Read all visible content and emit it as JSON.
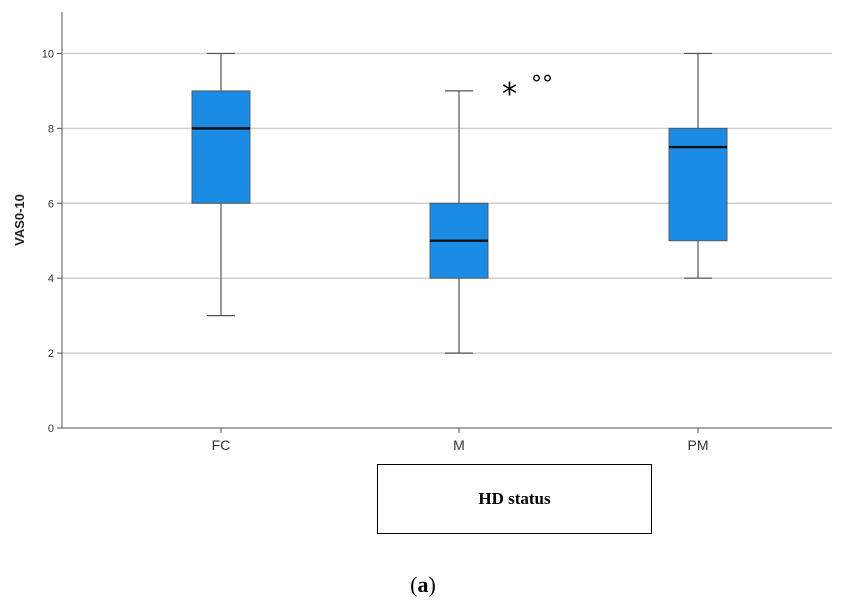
{
  "chart_data": {
    "type": "boxplot",
    "ylabel": "VAS0-10",
    "xlabel": "HD status",
    "ylim": [
      0,
      11
    ],
    "yticks": [
      0,
      2,
      4,
      6,
      8,
      10
    ],
    "grid": "horizontal",
    "box_color": "#1a8ce6",
    "categories": [
      "FC",
      "M",
      "PM"
    ],
    "boxes": [
      {
        "name": "FC",
        "min": 3,
        "q1": 6,
        "median": 8,
        "q3": 9,
        "max": 10
      },
      {
        "name": "M",
        "min": 2,
        "q1": 4,
        "median": 5,
        "q3": 6,
        "max": 9
      },
      {
        "name": "PM",
        "min": 4,
        "q1": 5,
        "median": 7.5,
        "q3": 8,
        "max": 10
      }
    ],
    "annotations": {
      "star": "*",
      "circles": "°°"
    }
  },
  "caption": {
    "open": "(",
    "letter": "a",
    "close": ")"
  }
}
